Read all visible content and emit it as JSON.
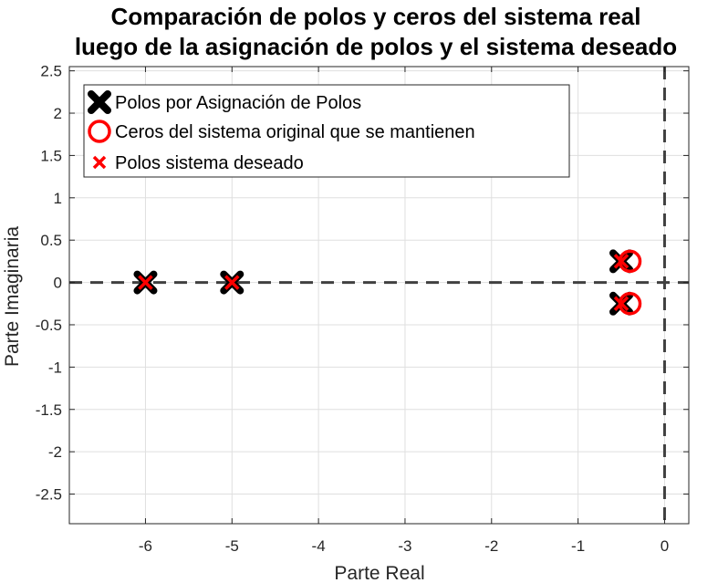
{
  "chart_data": {
    "type": "scatter",
    "title": [
      "Comparación de polos y ceros del sistema real",
      "luego de la asignación de polos y el sistema deseado"
    ],
    "xlabel": "Parte Real",
    "ylabel": "Parte Imaginaria",
    "xlim": [
      -6.88,
      0.28
    ],
    "ylim": [
      -2.85,
      2.55
    ],
    "xticks": [
      -6,
      -5,
      -4,
      -3,
      -2,
      -1,
      0
    ],
    "xtick_labels": [
      "-6",
      "-5",
      "-4",
      "-3",
      "-2",
      "-1",
      "0"
    ],
    "yticks": [
      -2.5,
      -2,
      -1.5,
      -1,
      -0.5,
      0,
      0.5,
      1,
      1.5,
      2,
      2.5
    ],
    "ytick_labels": [
      "-2.5",
      "-2",
      "-1.5",
      "-1",
      "-0.5",
      "0",
      "0.5",
      "1",
      "1.5",
      "2",
      "2.5"
    ],
    "grid": true,
    "legend_position": "top-left",
    "reference_lines": {
      "x": 0,
      "y": 0,
      "style": "dashed"
    },
    "series": [
      {
        "name": "Polos por Asignación de Polos",
        "marker": "x-bold",
        "color": "#000000",
        "points": [
          [
            -6.0,
            0.0
          ],
          [
            -5.0,
            0.0
          ],
          [
            -0.5,
            0.25
          ],
          [
            -0.5,
            -0.25
          ]
        ]
      },
      {
        "name": "Ceros del sistema original que se mantienen",
        "marker": "circle",
        "color": "#ff0000",
        "points": [
          [
            -0.4,
            0.25
          ],
          [
            -0.4,
            -0.25
          ]
        ]
      },
      {
        "name": "Polos sistema deseado",
        "marker": "x",
        "color": "#ff0000",
        "points": [
          [
            -6.0,
            0.0
          ],
          [
            -5.0,
            0.0
          ],
          [
            -0.5,
            0.25
          ],
          [
            -0.5,
            -0.25
          ]
        ]
      }
    ]
  }
}
